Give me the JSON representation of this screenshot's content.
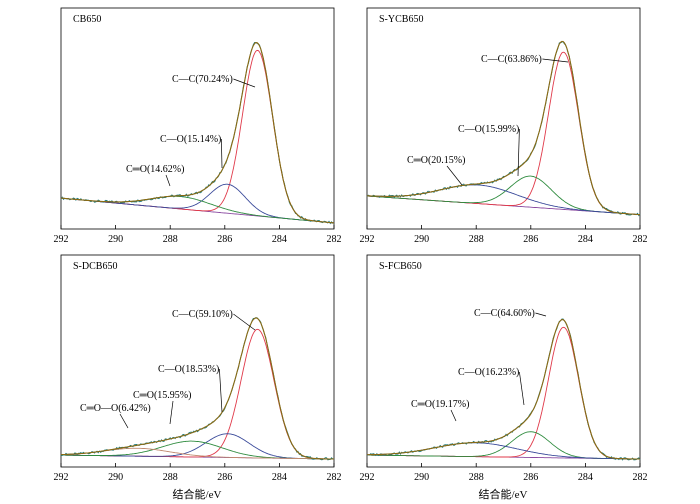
{
  "figure": {
    "xlabel": "结合能/eV"
  },
  "colors": {
    "envelope": "#8a6a14",
    "raw": "#1f7a7a",
    "cc": "#e03a4a",
    "co": "#3a4a9a",
    "cdo": "#2e8b3e",
    "oco": "#c08a70",
    "background": "#8a4aa0",
    "axis": "#000000"
  },
  "chart_data": [
    {
      "type": "line",
      "title": "CB650",
      "xlabel": "",
      "xlim": [
        292,
        282
      ],
      "xticks": [
        292,
        290,
        288,
        286,
        284,
        282
      ],
      "ylim": [
        0,
        1
      ],
      "background": {
        "start": 0.13,
        "end": 0.01
      },
      "peaks": [
        {
          "name": "C—C",
          "label": "C—C(70.24%)",
          "center": 284.8,
          "height": 0.8,
          "width": 0.55,
          "color": "cc"
        },
        {
          "name": "C—O",
          "label": "C—O(15.14%)",
          "center": 285.9,
          "height": 0.14,
          "width": 0.65,
          "color": "co"
        },
        {
          "name": "C=O",
          "label": "C═O(14.62%)",
          "center": 287.6,
          "height": 0.06,
          "width": 1.1,
          "color": "cdo"
        }
      ],
      "annotations": [
        {
          "peak": 0,
          "text": "C—C(70.24%)"
        },
        {
          "peak": 1,
          "text": "C—O(15.14%)"
        },
        {
          "peak": 2,
          "text": "C═O(14.62%)"
        }
      ]
    },
    {
      "type": "line",
      "title": "S-YCB650",
      "xlabel": "",
      "xlim": [
        292,
        282
      ],
      "xticks": [
        292,
        290,
        288,
        286,
        284,
        282
      ],
      "ylim": [
        0,
        1
      ],
      "background": {
        "start": 0.14,
        "end": 0.05
      },
      "peaks": [
        {
          "name": "C—C",
          "label": "C—C(63.86%)",
          "center": 284.8,
          "height": 0.76,
          "width": 0.55,
          "color": "cc"
        },
        {
          "name": "C—O",
          "label": "C—O(15.99%)",
          "center": 286.0,
          "height": 0.15,
          "width": 0.75,
          "color": "cdo"
        },
        {
          "name": "C=O",
          "label": "C═O(20.15%)",
          "center": 287.9,
          "height": 0.09,
          "width": 1.4,
          "color": "co"
        }
      ],
      "annotations": [
        {
          "peak": 0,
          "text": "C—C(63.86%)"
        },
        {
          "peak": 1,
          "text": "C—O(15.99%)"
        },
        {
          "peak": 2,
          "text": "C═O(20.15%)"
        }
      ]
    },
    {
      "type": "line",
      "title": "S-DCB650",
      "xlabel": "结合能/eV",
      "xlim": [
        292,
        282
      ],
      "xticks": [
        292,
        290,
        288,
        286,
        284,
        282
      ],
      "ylim": [
        0,
        1
      ],
      "background": {
        "start": 0.04,
        "end": 0.02
      },
      "peaks": [
        {
          "name": "C—C",
          "label": "C—C(59.10%)",
          "center": 284.8,
          "height": 0.65,
          "width": 0.6,
          "color": "cc"
        },
        {
          "name": "C—O",
          "label": "C—O(18.53%)",
          "center": 285.9,
          "height": 0.12,
          "width": 0.8,
          "color": "co"
        },
        {
          "name": "C=O",
          "label": "C═O(15.95%)",
          "center": 287.2,
          "height": 0.08,
          "width": 1.1,
          "color": "cdo"
        },
        {
          "name": "O—C=O",
          "label": "C═O—O(6.42%)",
          "center": 289.2,
          "height": 0.04,
          "width": 1.2,
          "color": "oco"
        }
      ],
      "annotations": [
        {
          "peak": 0,
          "text": "C—C(59.10%)"
        },
        {
          "peak": 1,
          "text": "C—O(18.53%)"
        },
        {
          "peak": 2,
          "text": "C═O(15.95%)"
        },
        {
          "peak": 3,
          "text": "C═O—O(6.42%)"
        }
      ]
    },
    {
      "type": "line",
      "title": "S-FCB650",
      "xlabel": "结合能/eV",
      "xlim": [
        292,
        282
      ],
      "xticks": [
        292,
        290,
        288,
        286,
        284,
        282
      ],
      "ylim": [
        0,
        1
      ],
      "background": {
        "start": 0.04,
        "end": 0.02
      },
      "peaks": [
        {
          "name": "C—C",
          "label": "C—C(64.60%)",
          "center": 284.8,
          "height": 0.66,
          "width": 0.55,
          "color": "cc"
        },
        {
          "name": "C—O",
          "label": "C—O(16.23%)",
          "center": 286.0,
          "height": 0.13,
          "width": 0.7,
          "color": "cdo"
        },
        {
          "name": "C=O",
          "label": "C═O(19.17%)",
          "center": 288.0,
          "height": 0.07,
          "width": 1.5,
          "color": "co"
        }
      ],
      "annotations": [
        {
          "peak": 0,
          "text": "C—C(64.60%)"
        },
        {
          "peak": 1,
          "text": "C—O(16.23%)"
        },
        {
          "peak": 2,
          "text": "C═O(19.17%)"
        }
      ]
    }
  ]
}
